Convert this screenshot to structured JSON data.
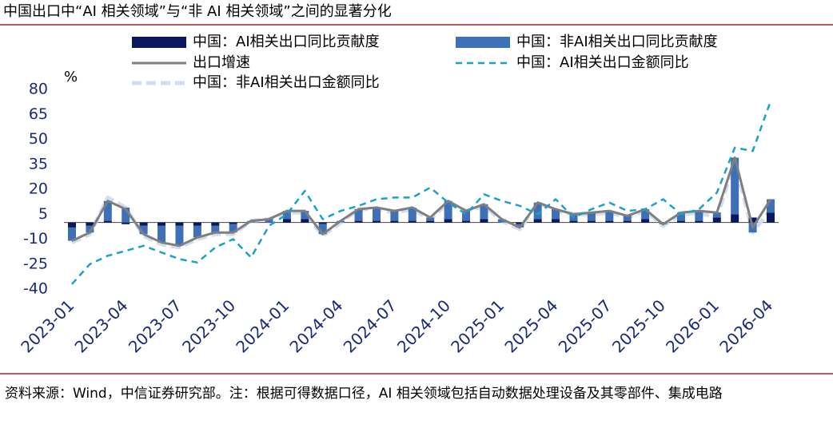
{
  "chart_data": {
    "type": "bar-line",
    "title": "中国出口中“AI 相关领域”与“非 AI 相关领域”之间的显著分化",
    "y_unit": "%",
    "source": "资料来源：Wind，中信证券研究部。注：根据可得数据口径，AI 相关领域包括自动数据处理设备及其零部件、集成电路",
    "categories": [
      "2023-01",
      null,
      null,
      "2023-04",
      null,
      null,
      "2023-07",
      null,
      null,
      "2023-10",
      null,
      null,
      "2024-01",
      null,
      null,
      "2024-04",
      null,
      null,
      "2024-07",
      null,
      null,
      "2024-10",
      null,
      null,
      "2025-01",
      null,
      null,
      "2025-04",
      null,
      null,
      "2025-07",
      null,
      null,
      "2025-10",
      null,
      null,
      "2026-01",
      null,
      null,
      "2026-04"
    ],
    "ylim": [
      -40,
      80
    ],
    "yticks": [
      -40,
      -25,
      -10,
      5,
      20,
      35,
      50,
      65,
      80
    ],
    "series": [
      {
        "name": "中国：AI相关出口同比贡献度",
        "kind": "bar",
        "color": "#0b1660",
        "values": [
          -3,
          -2,
          1,
          -1,
          -2,
          -2,
          -2,
          -2,
          -2,
          -1,
          0,
          0,
          2,
          2,
          -1,
          0,
          1,
          1,
          1,
          1,
          1,
          2,
          1,
          2,
          0,
          -1,
          2,
          2,
          1,
          1,
          1,
          1,
          2,
          0,
          1,
          1,
          3,
          5,
          3,
          6
        ]
      },
      {
        "name": "中国：非AI相关出口同比贡献度",
        "kind": "bar",
        "color": "#3e70b8",
        "values": [
          -8,
          -4,
          12,
          9,
          -5,
          -10,
          -12,
          -7,
          -4,
          -5,
          1,
          2,
          5,
          5,
          -6,
          1,
          7,
          8,
          6,
          8,
          2,
          11,
          6,
          9,
          2,
          -2,
          10,
          6,
          4,
          5,
          6,
          3,
          6,
          -1,
          5,
          6,
          3,
          34,
          -6,
          8
        ]
      },
      {
        "name": "出口增速",
        "kind": "line",
        "color": "#7f7f7f",
        "values": [
          -11,
          -6,
          13,
          8,
          -7,
          -12,
          -14,
          -9,
          -6,
          -6,
          1,
          2,
          7,
          7,
          -7,
          1,
          8,
          9,
          7,
          9,
          3,
          13,
          7,
          11,
          2,
          -3,
          12,
          8,
          5,
          6,
          7,
          4,
          8,
          -1,
          6,
          7,
          6,
          39,
          -3,
          14
        ]
      },
      {
        "name": "中国：AI相关出口金额同比",
        "kind": "dash",
        "color": "#19a2c6",
        "values": [
          -37,
          -25,
          -20,
          -17,
          -14,
          -18,
          -22,
          -24,
          -15,
          -10,
          -21,
          -2,
          5,
          19,
          2,
          7,
          10,
          14,
          15,
          15,
          21,
          12,
          5,
          17,
          13,
          10,
          5,
          14,
          3,
          8,
          12,
          7,
          8,
          14,
          5,
          8,
          18,
          45,
          43,
          73
        ]
      },
      {
        "name": "中国：非AI相关出口金额同比",
        "kind": "wide-dash",
        "color": "#d3ddf0",
        "values": [
          -12,
          -7,
          15,
          9,
          -8,
          -13,
          -15,
          -10,
          -7,
          -7,
          1,
          2,
          6,
          6,
          -8,
          0,
          8,
          8,
          6,
          8,
          2,
          12,
          7,
          10,
          1,
          -4,
          12,
          7,
          5,
          5,
          6,
          3,
          7,
          -2,
          5,
          6,
          3,
          37,
          -6,
          8
        ]
      }
    ]
  }
}
